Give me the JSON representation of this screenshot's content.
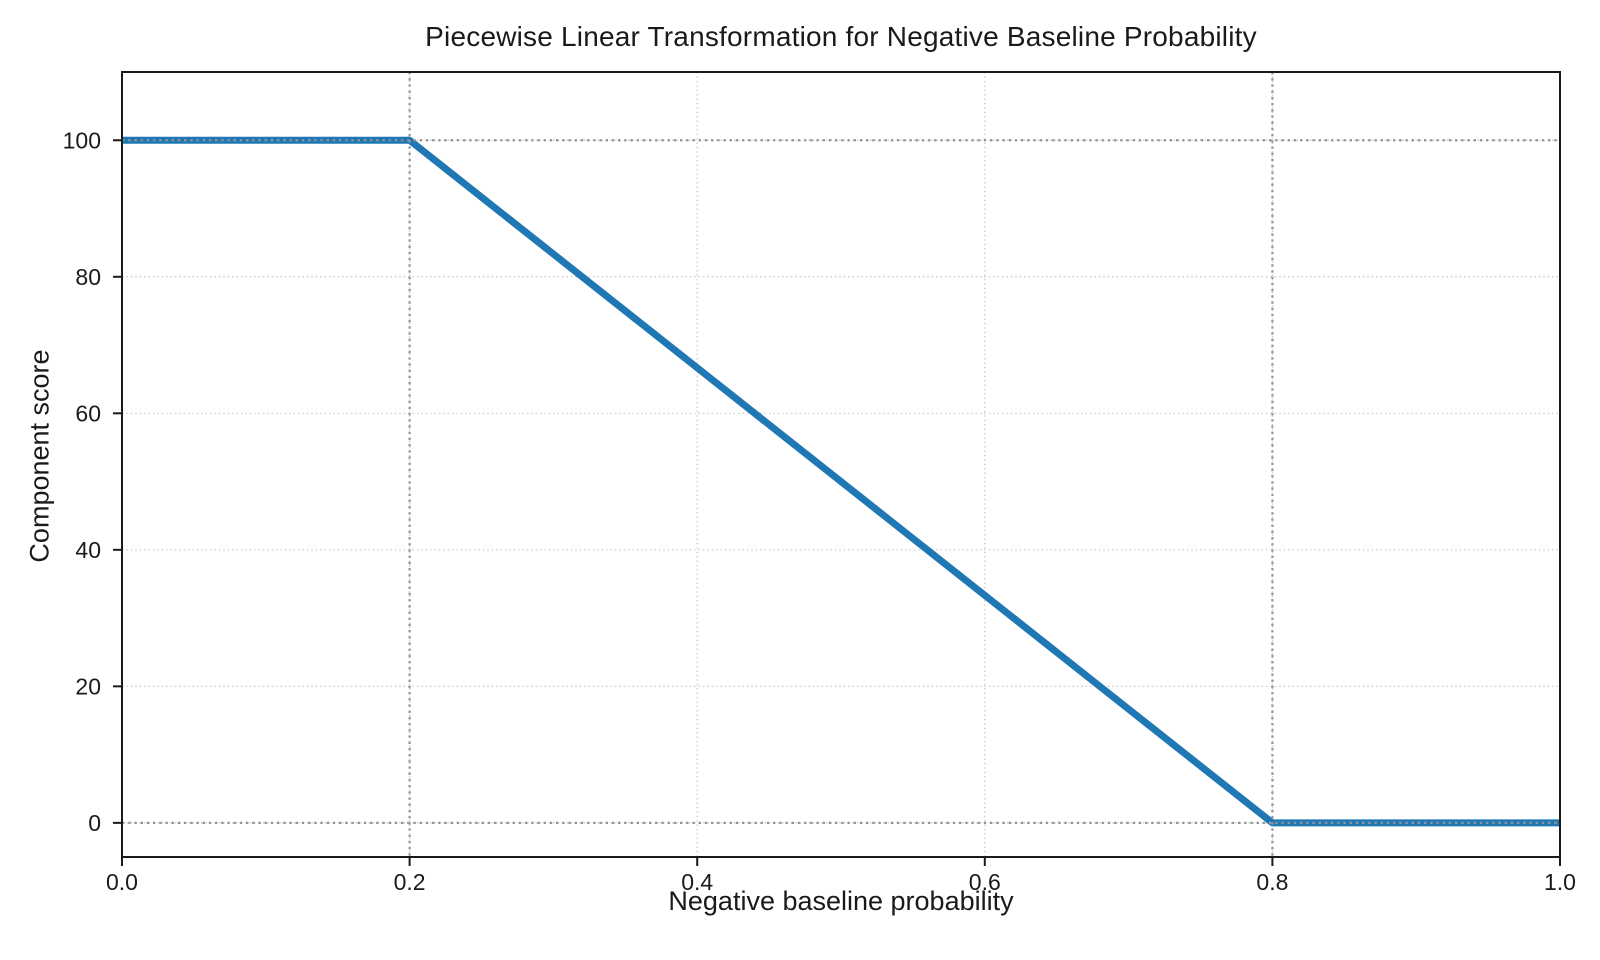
{
  "figure": {
    "background": "#ffffff",
    "text_color": "#1a1a1a"
  },
  "chart_data": {
    "type": "line",
    "title": "Piecewise Linear Transformation for Negative Baseline Probability",
    "xlabel": "Negative baseline probability",
    "ylabel": "Component score",
    "xlim": [
      0.0,
      1.0
    ],
    "ylim": [
      -5,
      110
    ],
    "xticks": {
      "values": [
        0.0,
        0.2,
        0.4,
        0.6,
        0.8,
        1.0
      ],
      "labels": [
        "0.0",
        "0.2",
        "0.4",
        "0.6",
        "0.8",
        "1.0"
      ]
    },
    "yticks": {
      "values": [
        0,
        20,
        40,
        60,
        80,
        100
      ],
      "labels": [
        "0",
        "20",
        "40",
        "60",
        "80",
        "100"
      ]
    },
    "grid": {
      "show": true,
      "style": "dotted",
      "color": "#c9c9c9"
    },
    "series": [
      {
        "name": "Component score",
        "x": [
          0.0,
          0.2,
          0.8,
          1.0
        ],
        "y": [
          100,
          100,
          0,
          0
        ],
        "color": "#1f77b4",
        "linewidth": 7,
        "shape": "score stays at 100 up to p=0.2, falls linearly to 0 at p=0.8, then stays at 0"
      }
    ],
    "reference_lines": {
      "vertical_x": [
        0.2,
        0.8
      ],
      "horizontal_y": [
        100,
        0
      ],
      "style": "dotted",
      "color": "#949494"
    },
    "legend": "none",
    "spine_color": "#1a1a1a",
    "tick_label_size": 23
  }
}
